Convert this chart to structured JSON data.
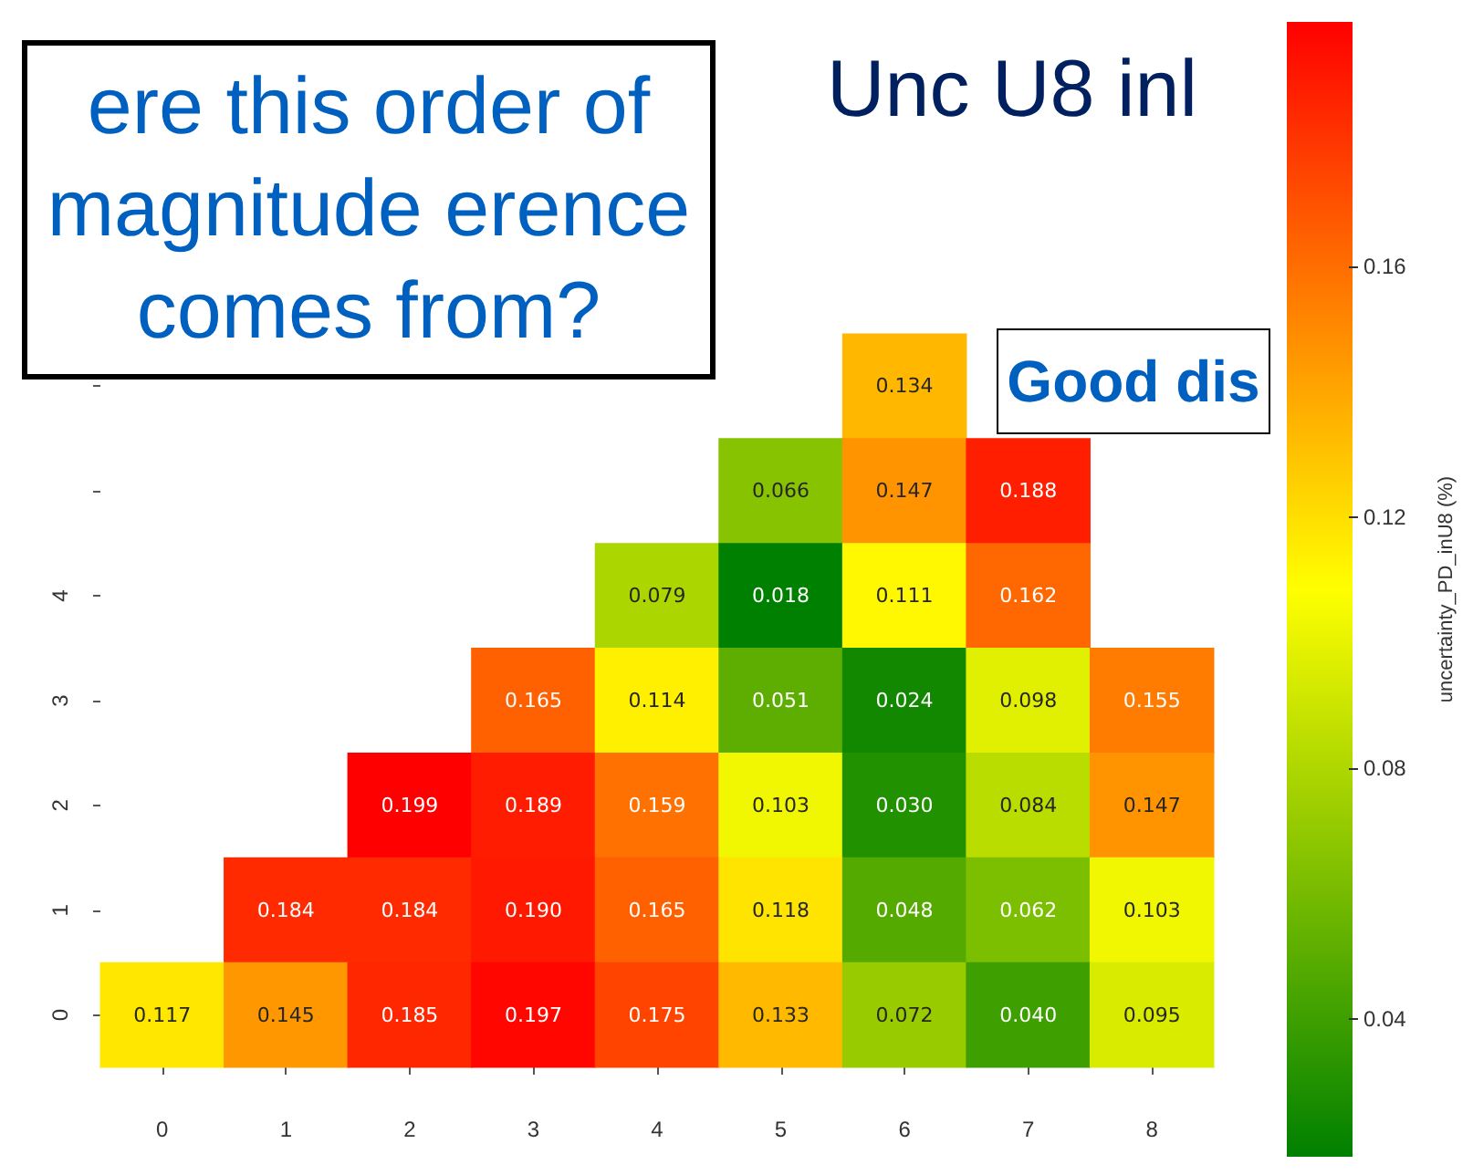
{
  "chart_data": {
    "type": "heatmap",
    "title": "Unc U8 inl",
    "categories": [
      "0",
      "1",
      "2",
      "3",
      "4",
      "5",
      "6",
      "7",
      "8"
    ],
    "y_categories": [
      null,
      null,
      "4",
      "3",
      "2",
      "1",
      "0"
    ],
    "cells": [
      [
        null,
        null,
        null,
        null,
        null,
        null,
        0.134,
        null,
        null
      ],
      [
        null,
        null,
        null,
        null,
        null,
        0.066,
        0.147,
        0.188,
        null
      ],
      [
        null,
        null,
        null,
        null,
        0.079,
        0.018,
        0.111,
        0.162,
        null
      ],
      [
        null,
        null,
        null,
        0.165,
        0.114,
        0.051,
        0.024,
        0.098,
        0.155
      ],
      [
        null,
        null,
        0.199,
        0.189,
        0.159,
        0.103,
        0.03,
        0.084,
        0.147
      ],
      [
        null,
        0.184,
        0.184,
        0.19,
        0.165,
        0.118,
        0.048,
        0.062,
        0.103
      ],
      [
        0.117,
        0.145,
        0.185,
        0.197,
        0.175,
        0.133,
        0.072,
        0.04,
        0.095
      ]
    ],
    "cell_labels": [
      [
        null,
        null,
        null,
        null,
        null,
        null,
        "0.134",
        null,
        null
      ],
      [
        null,
        null,
        null,
        null,
        null,
        "0.066",
        "0.147",
        "0.188",
        null
      ],
      [
        null,
        null,
        null,
        null,
        "0.079",
        "0.018",
        "0.111",
        "0.162",
        null
      ],
      [
        null,
        null,
        null,
        "0.165",
        "0.114",
        "0.051",
        "0.024",
        "0.098",
        "0.155"
      ],
      [
        null,
        null,
        "0.199",
        "0.189",
        "0.159",
        "0.103",
        "0.030",
        "0.084",
        "0.147"
      ],
      [
        null,
        "0.184",
        "0.184",
        "0.190",
        "0.165",
        "0.118",
        "0.048",
        "0.062",
        "0.103"
      ],
      [
        "0.117",
        "0.145",
        "0.185",
        "0.197",
        "0.175",
        "0.133",
        "0.072",
        "0.040",
        "0.095"
      ]
    ],
    "clabel": "uncertainty_PD_inU8 (%)",
    "clim": [
      0.018,
      0.199
    ],
    "cticks": [
      0.04,
      0.08,
      0.12,
      0.16
    ],
    "annotations": [
      "ere this order of magnitude erence comes from?",
      "Good dis"
    ]
  }
}
